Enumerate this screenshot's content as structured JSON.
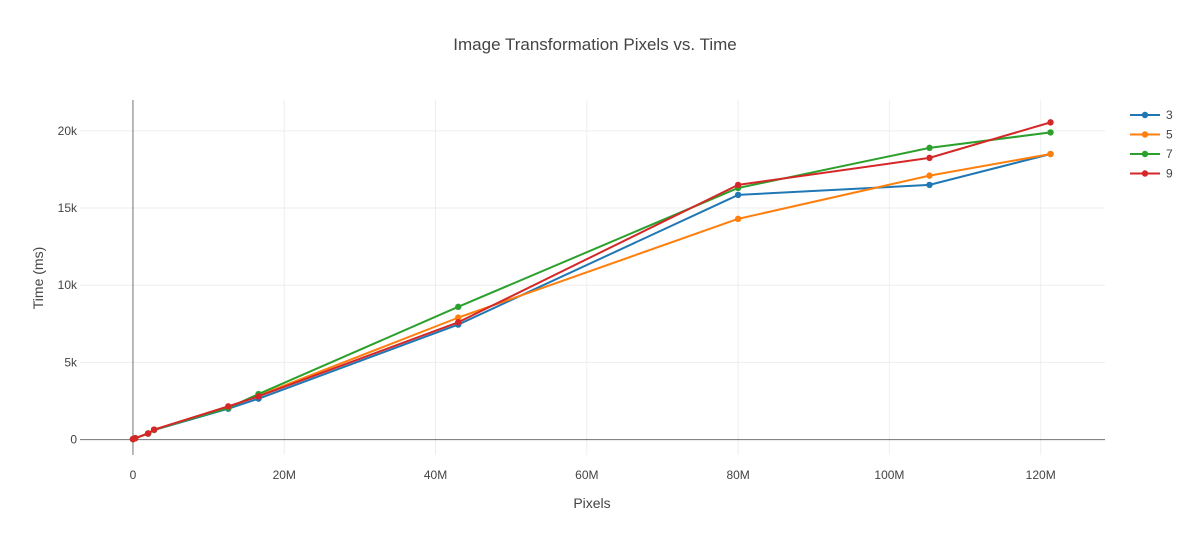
{
  "chart_data": {
    "type": "line",
    "title": "Image Transformation Pixels vs. Time",
    "xlabel": "Pixels",
    "ylabel": "Time (ms)",
    "xlim": [
      -7000000,
      128500000
    ],
    "ylim": [
      -1000,
      22000
    ],
    "x_ticks": [
      0,
      20000000,
      40000000,
      60000000,
      80000000,
      100000000,
      120000000
    ],
    "x_tick_labels": [
      "0",
      "20M",
      "40M",
      "60M",
      "80M",
      "100M",
      "120M"
    ],
    "y_ticks": [
      0,
      5000,
      10000,
      15000,
      20000
    ],
    "y_tick_labels": [
      "0",
      "5k",
      "10k",
      "15k",
      "20k"
    ],
    "grid": true,
    "legend_position": "top-right",
    "series": [
      {
        "name": "3",
        "color": "#1f77b4",
        "x": [
          0,
          300000,
          2000000,
          2800000,
          12600000,
          16600000,
          43000000,
          80000000,
          105300000,
          121300000
        ],
        "y": [
          30,
          90,
          380,
          620,
          2000,
          2650,
          7450,
          15850,
          16500,
          18500
        ]
      },
      {
        "name": "5",
        "color": "#ff7f0e",
        "x": [
          0,
          300000,
          2000000,
          2800000,
          12600000,
          16600000,
          43000000,
          80000000,
          105300000,
          121300000
        ],
        "y": [
          30,
          90,
          390,
          630,
          2100,
          2850,
          7900,
          14300,
          17100,
          18500
        ]
      },
      {
        "name": "7",
        "color": "#2ca02c",
        "x": [
          0,
          300000,
          2000000,
          2800000,
          12600000,
          16600000,
          43000000,
          80000000,
          105300000,
          121300000
        ],
        "y": [
          30,
          90,
          400,
          640,
          2050,
          2950,
          8600,
          16300,
          18900,
          19900
        ]
      },
      {
        "name": "9",
        "color": "#d62728",
        "x": [
          0,
          300000,
          2000000,
          2800000,
          12600000,
          16600000,
          43000000,
          80000000,
          105300000,
          121300000
        ],
        "y": [
          30,
          90,
          400,
          650,
          2150,
          2800,
          7600,
          16500,
          18250,
          20550
        ]
      }
    ]
  }
}
